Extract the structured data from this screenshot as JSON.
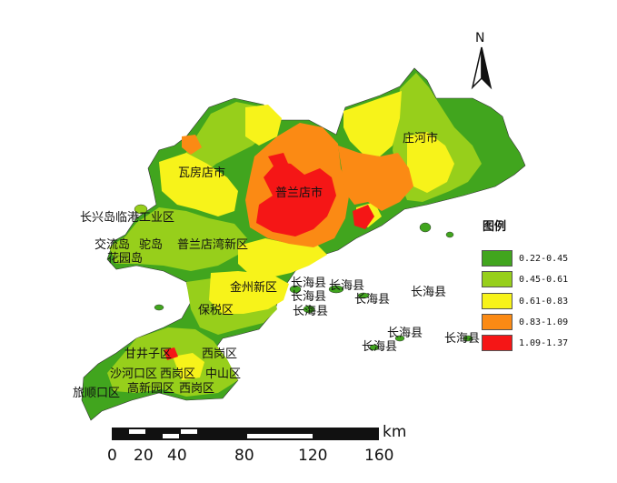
{
  "colors": {
    "class1": "#41a51e",
    "class2": "#97cf1b",
    "class3": "#f7f31a",
    "class4": "#fb8a14",
    "class5": "#f51616"
  },
  "legend": {
    "title": "图例",
    "items": [
      {
        "label": "0.22-0.45",
        "color": "#41a51e"
      },
      {
        "label": "0.45-0.61",
        "color": "#97cf1b"
      },
      {
        "label": "0.61-0.83",
        "color": "#f7f31a"
      },
      {
        "label": "0.83-1.09",
        "color": "#fb8a14"
      },
      {
        "label": "1.09-1.37",
        "color": "#f51616"
      }
    ]
  },
  "north_arrow": {
    "label": "N"
  },
  "scale_bar": {
    "unit": "km",
    "ticks": [
      "0",
      "20",
      "40",
      "80",
      "120",
      "160"
    ]
  },
  "place_labels": [
    "庄河市",
    "瓦房店市",
    "普兰店市",
    "长兴岛临港工业区",
    "交流岛",
    "驼岛",
    "普兰店湾新区",
    "花园岛",
    "金州新区",
    "保税区",
    "长海县",
    "长海县",
    "长海县",
    "长海县",
    "长海县",
    "长海县",
    "长海县",
    "长海县",
    "甘井子区",
    "沙河口区",
    "西岗区",
    "中山区",
    "旅顺口区",
    "高新园区",
    "西岗区"
  ]
}
